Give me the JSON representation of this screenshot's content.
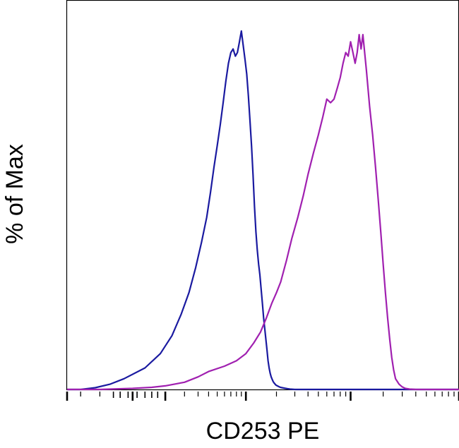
{
  "chart_data": {
    "type": "line",
    "title": "",
    "xlabel": "CD253 PE",
    "ylabel": "% of Max",
    "x_scale": "log",
    "xlim": [
      -300,
      100000
    ],
    "ylim": [
      0,
      100
    ],
    "grid": false,
    "legend": "none",
    "x_tick_labels": [],
    "y_tick_labels": [],
    "series": [
      {
        "color": "#1a1aa0",
        "x": [
          -300,
          -200,
          -120,
          -60,
          -20,
          30,
          80,
          130,
          180,
          230,
          280,
          330,
          380,
          420,
          460,
          500,
          540,
          580,
          620,
          660,
          700,
          740,
          780,
          820,
          860,
          900,
          940,
          980,
          1020,
          1060,
          1100,
          1140,
          1180,
          1220,
          1260,
          1300,
          1340,
          1380,
          1420,
          1460,
          1500,
          1540,
          1580,
          1620,
          1660,
          1700,
          1740,
          1780,
          1820,
          1860,
          1900,
          1940,
          1980,
          2040,
          2100,
          2180,
          2260,
          2350,
          2450,
          2560,
          2700,
          3000,
          100000
        ],
        "y": [
          0,
          0,
          0.5,
          1.5,
          3,
          6,
          10,
          15,
          21,
          27,
          34,
          41,
          48,
          55,
          62,
          68,
          74,
          80,
          86,
          91,
          94,
          95,
          93,
          94,
          97,
          100,
          96,
          92,
          88,
          82,
          75,
          68,
          60,
          51,
          44,
          39,
          35,
          32,
          28,
          24,
          20,
          17,
          14,
          11,
          8,
          6,
          4.5,
          3.5,
          2.8,
          2.2,
          1.8,
          1.5,
          1.2,
          1.0,
          0.8,
          0.6,
          0.5,
          0.4,
          0.3,
          0.2,
          0.1,
          0,
          0
        ]
      },
      {
        "color": "#a020b0",
        "x": [
          -300,
          -100,
          0,
          50,
          100,
          200,
          300,
          400,
          600,
          800,
          1000,
          1200,
          1400,
          1600,
          1800,
          2000,
          2200,
          2500,
          2800,
          3200,
          3600,
          4000,
          4500,
          5000,
          5500,
          6000,
          6500,
          7000,
          7500,
          8000,
          8500,
          9000,
          9500,
          10000,
          10500,
          11000,
          11500,
          12000,
          12500,
          13000,
          14000,
          15000,
          16000,
          17000,
          18000,
          19000,
          20000,
          21000,
          22000,
          23000,
          24000,
          25000,
          26000,
          28000,
          30000,
          32000,
          35000,
          40000,
          50000,
          70000,
          100000
        ],
        "y": [
          0,
          0,
          0.3,
          0.6,
          1,
          2,
          3.5,
          5,
          6.5,
          8,
          10,
          13,
          16,
          20,
          24,
          27,
          30,
          36,
          42,
          48,
          54,
          60,
          66,
          71,
          76,
          81,
          80,
          81,
          84,
          87,
          91,
          94,
          93,
          97,
          94,
          91,
          94,
          99,
          95,
          99,
          89,
          79,
          71,
          62,
          53,
          44,
          35,
          27,
          20,
          14,
          9,
          5.5,
          3,
          1.5,
          0.7,
          0.3,
          0.1,
          0,
          0,
          0,
          0
        ]
      }
    ]
  }
}
